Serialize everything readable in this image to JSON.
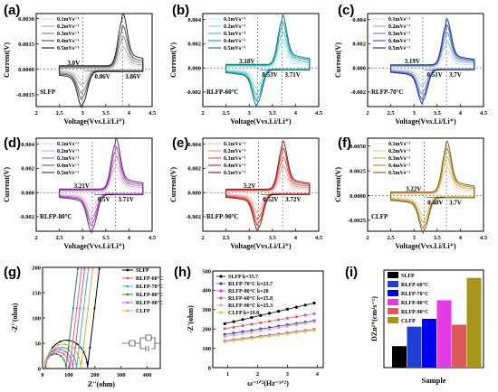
{
  "chart_data": [
    {
      "panel": "(a)",
      "type": "line",
      "xlabel": "Voltage(Vvs.Li/Li⁺)",
      "ylabel": "Current(V)",
      "xlim": [
        2.0,
        4.5
      ],
      "ylim": [
        -0.0022,
        0.0033
      ],
      "xticks": [
        2.0,
        2.5,
        3.0,
        3.5,
        4.0,
        4.5
      ],
      "ytick_labels": [
        "0.0030",
        "0.0015",
        "0.0000",
        "-0.0015"
      ],
      "yticks": [
        0.003,
        0.0015,
        0,
        -0.0015
      ],
      "sample": "SLFP",
      "peak_ox_v": 3.86,
      "peak_red_v": 3.0,
      "ann_ox": "3.86V",
      "ann_red": "3.0V",
      "ann_dv": "0.86V",
      "colors": [
        "#d8d8d8",
        "#b0b0b0",
        "#888888",
        "#5a5a5a",
        "#262626"
      ],
      "series": [
        {
          "name": "0.1mVs⁻¹",
          "ox_peak": 0.0007,
          "red_peak": -0.0005
        },
        {
          "name": "0.2mVs⁻¹",
          "ox_peak": 0.0011,
          "red_peak": -0.0008
        },
        {
          "name": "0.3mVs⁻¹",
          "ox_peak": 0.0016,
          "red_peak": -0.0012
        },
        {
          "name": "0.4mVs⁻¹",
          "ox_peak": 0.0021,
          "red_peak": -0.0015
        },
        {
          "name": "0.5mVs⁻¹",
          "ox_peak": 0.0027,
          "red_peak": -0.0019
        }
      ]
    },
    {
      "panel": "(b)",
      "type": "line",
      "xlabel": "Voltage(Vvs.Li/Li⁺)",
      "ylabel": "Current(V)",
      "xlim": [
        2.0,
        4.5
      ],
      "ylim": [
        -0.0032,
        0.0045
      ],
      "xticks": [
        2.0,
        2.5,
        3.0,
        3.5,
        4.0,
        4.5
      ],
      "ytick_labels": [
        "0.004",
        "0.002",
        "0.000",
        "-0.002"
      ],
      "yticks": [
        0.004,
        0.002,
        0,
        -0.002
      ],
      "sample": "RLFP-60°C",
      "peak_ox_v": 3.71,
      "peak_red_v": 3.18,
      "ann_ox": "3.71V",
      "ann_red": "3.18V",
      "ann_dv": "0.53V",
      "colors": [
        "#c9eef0",
        "#8edde2",
        "#4fc4cc",
        "#1fa4ae",
        "#0e7a84"
      ],
      "series": [
        {
          "name": "0.1mVs⁻¹",
          "ox_peak": 0.0012,
          "red_peak": -0.0009
        },
        {
          "name": "0.2mVs⁻¹",
          "ox_peak": 0.0019,
          "red_peak": -0.0014
        },
        {
          "name": "0.3mVs⁻¹",
          "ox_peak": 0.0025,
          "red_peak": -0.0019
        },
        {
          "name": "0.4mVs⁻¹",
          "ox_peak": 0.0031,
          "red_peak": -0.0023
        },
        {
          "name": "0.5mVs⁻¹",
          "ox_peak": 0.0036,
          "red_peak": -0.0027
        }
      ]
    },
    {
      "panel": "(c)",
      "type": "line",
      "xlabel": "Voltage(Vvs.Li/Li⁺)",
      "ylabel": "Current(V)",
      "xlim": [
        2.0,
        4.5
      ],
      "ylim": [
        -0.0032,
        0.0045
      ],
      "xticks": [
        2.0,
        2.5,
        3.0,
        3.5,
        4.0,
        4.5
      ],
      "ytick_labels": [
        "0.004",
        "0.002",
        "0.000",
        "-0.002"
      ],
      "yticks": [
        0.004,
        0.002,
        0,
        -0.002
      ],
      "sample": "RLFP-70°C",
      "peak_ox_v": 3.7,
      "peak_red_v": 3.19,
      "ann_ox": "3.7V",
      "ann_red": "3.19V",
      "ann_dv": "0.51V",
      "colors": [
        "#cfd8f2",
        "#9fb1e6",
        "#6a86d4",
        "#3b5cbf",
        "#1a3a9e"
      ],
      "series": [
        {
          "name": "0.1mVs⁻¹",
          "ox_peak": 0.0011,
          "red_peak": -0.0008
        },
        {
          "name": "0.2mVs⁻¹",
          "ox_peak": 0.0018,
          "red_peak": -0.0013
        },
        {
          "name": "0.3mVs⁻¹",
          "ox_peak": 0.0024,
          "red_peak": -0.0018
        },
        {
          "name": "0.4mVs⁻¹",
          "ox_peak": 0.0029,
          "red_peak": -0.0022
        },
        {
          "name": "0.5mVs⁻¹",
          "ox_peak": 0.0033,
          "red_peak": -0.0025
        }
      ]
    },
    {
      "panel": "(d)",
      "type": "line",
      "xlabel": "Voltage(Vvs.Li/Li⁺)",
      "ylabel": "Current(V)",
      "xlim": [
        2.0,
        4.5
      ],
      "ylim": [
        -0.0032,
        0.0045
      ],
      "xticks": [
        2.0,
        2.5,
        3.0,
        3.5,
        4.0,
        4.5
      ],
      "ytick_labels": [
        "0.004",
        "0.002",
        "0.000",
        "-0.002"
      ],
      "yticks": [
        0.004,
        0.002,
        0,
        -0.002
      ],
      "sample": "RLFP-80°C",
      "peak_ox_v": 3.71,
      "peak_red_v": 3.21,
      "ann_ox": "3.71V",
      "ann_red": "3.21V",
      "ann_dv": "0.5V",
      "colors": [
        "#ecd6ee",
        "#d6a9dc",
        "#bb79c4",
        "#9a4aa7",
        "#73237f"
      ],
      "series": [
        {
          "name": "0.1mVs⁻¹",
          "ox_peak": 0.0012,
          "red_peak": -0.0009
        },
        {
          "name": "0.2mVs⁻¹",
          "ox_peak": 0.0019,
          "red_peak": -0.0014
        },
        {
          "name": "0.3mVs⁻¹",
          "ox_peak": 0.0025,
          "red_peak": -0.0019
        },
        {
          "name": "0.4mVs⁻¹",
          "ox_peak": 0.0031,
          "red_peak": -0.0023
        },
        {
          "name": "0.5mVs⁻¹",
          "ox_peak": 0.0037,
          "red_peak": -0.0028
        }
      ]
    },
    {
      "panel": "(e)",
      "type": "line",
      "xlabel": "Voltage(Vvs.Li/Li⁺)",
      "ylabel": "Current(V)",
      "xlim": [
        2.0,
        4.5
      ],
      "ylim": [
        -0.0032,
        0.0045
      ],
      "xticks": [
        2.0,
        2.5,
        3.0,
        3.5,
        4.0,
        4.5
      ],
      "ytick_labels": [
        "0.004",
        "0.002",
        "0.000",
        "-0.002"
      ],
      "yticks": [
        0.004,
        0.002,
        0,
        -0.002
      ],
      "sample": "RLFP-90°C",
      "peak_ox_v": 3.72,
      "peak_red_v": 3.2,
      "ann_ox": "3.72V",
      "ann_red": "3.2V",
      "ann_dv": "0.52V",
      "colors": [
        "#f6c9c6",
        "#ec9691",
        "#dd605a",
        "#c8342e",
        "#9e1a16"
      ],
      "series": [
        {
          "name": "0.1mVs⁻¹",
          "ox_peak": 0.0012,
          "red_peak": -0.0009
        },
        {
          "name": "0.2mVs⁻¹",
          "ox_peak": 0.0018,
          "red_peak": -0.0014
        },
        {
          "name": "0.3mVs⁻¹",
          "ox_peak": 0.0024,
          "red_peak": -0.0019
        },
        {
          "name": "0.4mVs⁻¹",
          "ox_peak": 0.003,
          "red_peak": -0.0023
        },
        {
          "name": "0.5mVs⁻¹",
          "ox_peak": 0.0035,
          "red_peak": -0.0027
        }
      ]
    },
    {
      "panel": "(f)",
      "type": "line",
      "xlabel": "Voltage(Vvs.Li/Li⁺)",
      "ylabel": "Current(V)",
      "xlim": [
        2.0,
        4.5
      ],
      "ylim": [
        -0.0036,
        0.0058
      ],
      "xticks": [
        2.0,
        2.5,
        3.0,
        3.5,
        4.0,
        4.5
      ],
      "ytick_labels": [
        "0.0050",
        "0.0025",
        "0.0000",
        "-0.0025"
      ],
      "yticks": [
        0.005,
        0.0025,
        0,
        -0.0025
      ],
      "sample": "CLFP",
      "peak_ox_v": 3.7,
      "peak_red_v": 3.22,
      "ann_ox": "3.7V",
      "ann_red": "3.22V",
      "ann_dv": "0.48V",
      "colors": [
        "#f3e6c5",
        "#e4cd90",
        "#cfae5c",
        "#b08a35",
        "#85651d"
      ],
      "series": [
        {
          "name": "0.1mVs⁻¹",
          "ox_peak": 0.0015,
          "red_peak": -0.0011
        },
        {
          "name": "0.2mVs⁻¹",
          "ox_peak": 0.0024,
          "red_peak": -0.0017
        },
        {
          "name": "0.3mVs⁻¹",
          "ox_peak": 0.0032,
          "red_peak": -0.0023
        },
        {
          "name": "0.4mVs⁻¹",
          "ox_peak": 0.0039,
          "red_peak": -0.0028
        },
        {
          "name": "0.5mVs⁻¹",
          "ox_peak": 0.0045,
          "red_peak": -0.0032
        }
      ]
    },
    {
      "panel": "(g)",
      "type": "line",
      "xlabel": "Z''(ohm)",
      "ylabel": "-Z''(ohm)",
      "xlim": [
        0,
        450
      ],
      "ylim": [
        0,
        200
      ],
      "xticks": [
        0,
        100,
        200,
        300,
        400
      ],
      "yticks": [
        0,
        50,
        100,
        150,
        200
      ],
      "series": [
        {
          "name": "SLFP",
          "color": "#000000",
          "R0": 12,
          "Rct": 160,
          "tail_start": 172
        },
        {
          "name": "RLFP-60°C",
          "color": "#e8585f",
          "R0": 8,
          "Rct": 108,
          "tail_start": 116
        },
        {
          "name": "RLFP-70°C",
          "color": "#3ab0d8",
          "R0": 10,
          "Rct": 120,
          "tail_start": 130
        },
        {
          "name": "RLFP-80°C",
          "color": "#2e8b2e",
          "R0": 8,
          "Rct": 82,
          "tail_start": 90
        },
        {
          "name": "RLFP-90°C",
          "color": "#d05fd0",
          "R0": 10,
          "Rct": 94,
          "tail_start": 104
        },
        {
          "name": "CLFP",
          "color": "#d4b23c",
          "R0": 9,
          "Rct": 138,
          "tail_start": 147
        }
      ]
    },
    {
      "panel": "(h)",
      "type": "scatter",
      "xlabel": "ω⁻¹ᐟ²(Hz⁻¹ᐟ²)",
      "ylabel": "-Z'(ohm)",
      "xlim": [
        0.5,
        4.2
      ],
      "ylim": [
        0,
        500
      ],
      "xticks": [
        1,
        2,
        3,
        4
      ],
      "yticks": [
        0,
        100,
        200,
        300,
        400,
        500
      ],
      "series": [
        {
          "name": "SLFP k=35.7",
          "color": "#000000",
          "intercept": 195,
          "slope": 35.7
        },
        {
          "name": "RLFP-70°C k=23.7",
          "color": "#1f3fd6",
          "intercept": 150,
          "slope": 23.7
        },
        {
          "name": "RLFP-80°C k=20",
          "color": "#d63ad6",
          "intercept": 120,
          "slope": 20
        },
        {
          "name": "RLFP-60°C k=25.8",
          "color": "#e0606a",
          "intercept": 178,
          "slope": 25.8
        },
        {
          "name": "RLFP-90°C k=25.3",
          "color": "#e8a2a0",
          "intercept": 138,
          "slope": 25.3
        },
        {
          "name": "CLFP k=19.8",
          "color": "#c6d82a",
          "intercept": 115,
          "slope": 19.8
        }
      ],
      "x_points": [
        0.9,
        1.2,
        1.5,
        1.8,
        2.1,
        2.4,
        2.7,
        3.0,
        3.3,
        3.6,
        3.9
      ]
    },
    {
      "panel": "(i)",
      "type": "bar",
      "xlabel": "Sample",
      "ylabel": "DZn²⁺(cm²s⁻¹)",
      "categories": [
        "SLFP",
        "RLFP-60°C",
        "RLFP-70°C",
        "RLFP-80°C",
        "RLFP-90°C",
        "CLFP"
      ],
      "values": [
        0.22,
        0.42,
        0.5,
        0.69,
        0.44,
        0.92
      ],
      "colors": [
        "#000000",
        "#1f3fd6",
        "#0000ee",
        "#e53be5",
        "#e05858",
        "#a6951a"
      ]
    }
  ]
}
